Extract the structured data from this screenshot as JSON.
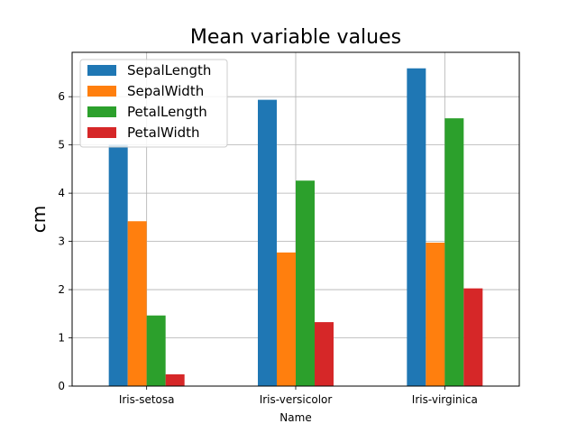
{
  "chart_data": {
    "type": "bar",
    "title": "Mean variable values",
    "xlabel": "Name",
    "ylabel": "cm",
    "categories": [
      "Iris-setosa",
      "Iris-versicolor",
      "Iris-virginica"
    ],
    "series": [
      {
        "name": "SepalLength",
        "color": "#1f77b4",
        "values": [
          5.006,
          5.936,
          6.588
        ]
      },
      {
        "name": "SepalWidth",
        "color": "#ff7f0e",
        "values": [
          3.418,
          2.77,
          2.974
        ]
      },
      {
        "name": "PetalLength",
        "color": "#2ca02c",
        "values": [
          1.464,
          4.26,
          5.552
        ]
      },
      {
        "name": "PetalWidth",
        "color": "#d62728",
        "values": [
          0.244,
          1.326,
          2.026
        ]
      }
    ],
    "ylim": [
      0,
      6.92
    ],
    "yticks": [
      0,
      1,
      2,
      3,
      4,
      5,
      6
    ],
    "grid": true,
    "legend_position": "top-left"
  }
}
